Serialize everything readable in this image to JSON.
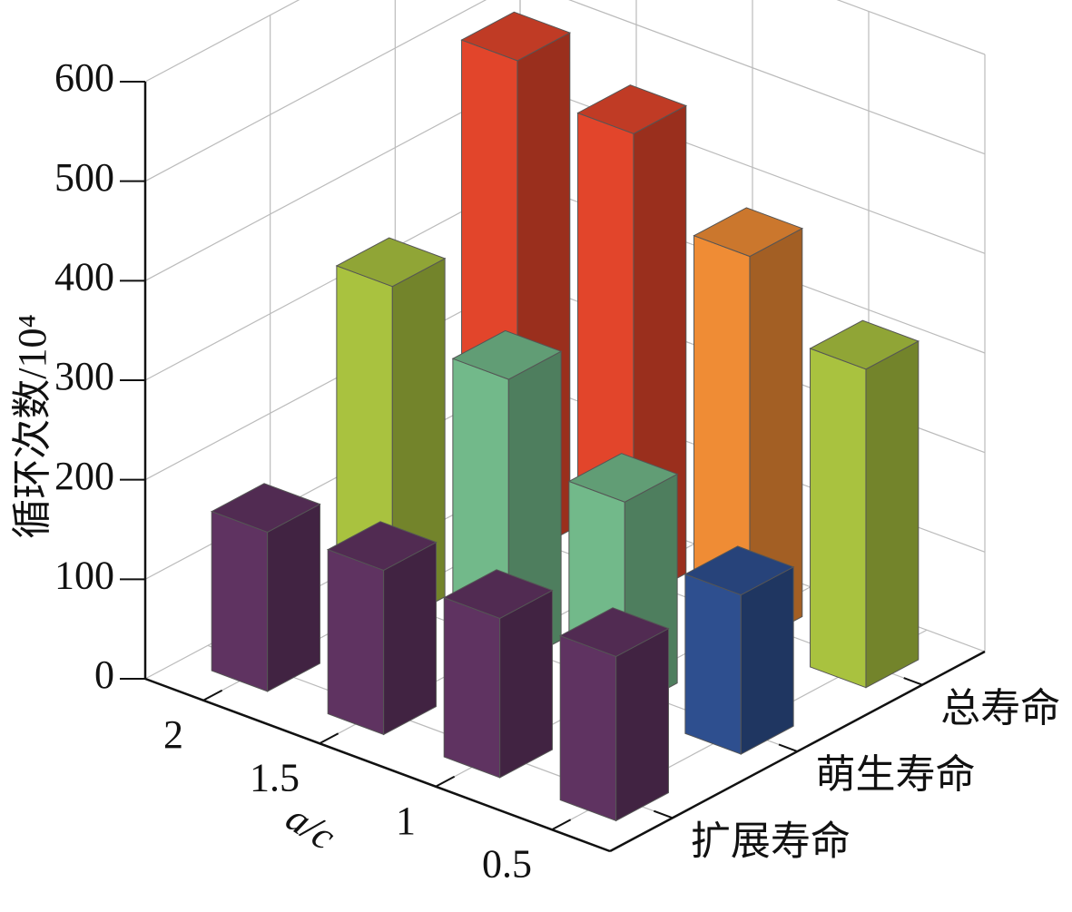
{
  "chart_data": {
    "type": "bar3d",
    "ylabel": "循环次数/10⁴",
    "xlabel": "a/c",
    "categories": [
      "2",
      "1.5",
      "1",
      "0.5"
    ],
    "series": [
      {
        "name": "扩展寿命",
        "colors": [
          "#5f3361",
          "#5f3361",
          "#5f3361",
          "#5f3361"
        ],
        "values": [
          160,
          165,
          160,
          165
        ]
      },
      {
        "name": "萌生寿命",
        "colors": [
          "#a9c23f",
          "#72b98a",
          "#72b98a",
          "#2e4f8f"
        ],
        "values": [
          340,
          290,
          210,
          160
        ]
      },
      {
        "name": "总寿命",
        "colors": [
          "#e2452b",
          "#e2452b",
          "#ef8c35",
          "#a9c23f"
        ],
        "values": [
          500,
          470,
          390,
          320
        ]
      }
    ],
    "ylim": [
      0,
      600
    ],
    "yticks": [
      0,
      100,
      200,
      300,
      400,
      500,
      600
    ],
    "grid": true
  }
}
